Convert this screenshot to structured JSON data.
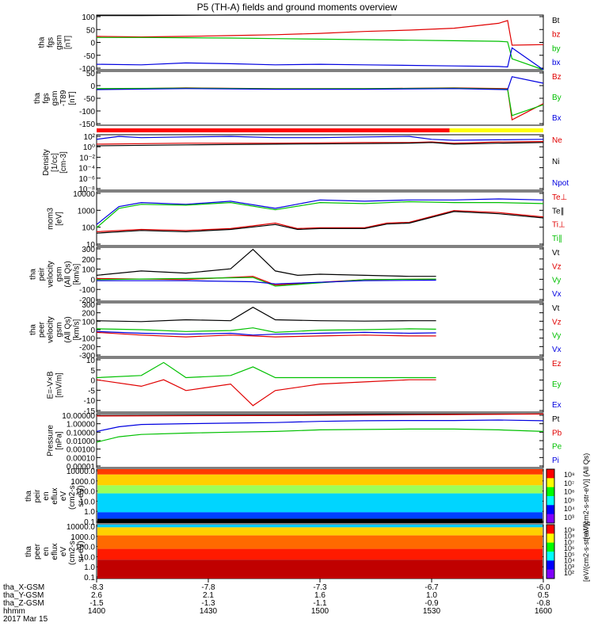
{
  "title": "P5 (TH-A) fields and ground moments overview",
  "chart_data": [
    {
      "type": "line",
      "ylabel": [
        "tha",
        "fgs",
        "gsm",
        "[nT]"
      ],
      "ylim": [
        -100,
        100
      ],
      "yticks": [
        "100",
        "50",
        "0",
        "-50",
        "-100"
      ],
      "legend": [
        {
          "name": "Bt",
          "color": "#000000"
        },
        {
          "name": "bz",
          "color": "#e00000"
        },
        {
          "name": "by",
          "color": "#00c000"
        },
        {
          "name": "bx",
          "color": "#0000e0"
        }
      ],
      "series": [
        {
          "name": "Bt",
          "color": "#000000",
          "x": [
            0,
            0.1,
            0.2,
            0.3,
            0.4,
            0.5,
            0.6,
            0.66
          ],
          "y": [
            98,
            98,
            99,
            100,
            101,
            103,
            104,
            103
          ]
        },
        {
          "name": "bz",
          "color": "#e00000",
          "x": [
            0,
            0.1,
            0.2,
            0.3,
            0.4,
            0.5,
            0.6,
            0.7,
            0.8,
            0.9,
            0.92,
            0.93,
            1
          ],
          "y": [
            22,
            20,
            22,
            25,
            28,
            33,
            40,
            45,
            52,
            70,
            80,
            -10,
            -8
          ]
        },
        {
          "name": "by",
          "color": "#00c000",
          "x": [
            0,
            0.1,
            0.2,
            0.3,
            0.4,
            0.5,
            0.6,
            0.7,
            0.8,
            0.9,
            0.92,
            0.93,
            1
          ],
          "y": [
            18,
            18,
            17,
            16,
            14,
            12,
            10,
            8,
            6,
            4,
            2,
            -60,
            -100
          ]
        },
        {
          "name": "bx",
          "color": "#0000e0",
          "x": [
            0,
            0.1,
            0.2,
            0.3,
            0.4,
            0.5,
            0.6,
            0.7,
            0.8,
            0.9,
            0.92,
            0.93,
            1
          ],
          "y": [
            -80,
            -82,
            -75,
            -78,
            -82,
            -80,
            -82,
            -84,
            -86,
            -88,
            -90,
            -20,
            -100
          ]
        }
      ]
    },
    {
      "type": "line",
      "ylabel": [
        "tha",
        "fgs",
        "gsm",
        "-T89",
        "[nT]"
      ],
      "ylim": [
        -175,
        75
      ],
      "yticks": [
        "50",
        "0",
        "-50",
        "-100",
        "-150"
      ],
      "legend": [
        {
          "name": "Bz",
          "color": "#e00000"
        },
        {
          "name": "By",
          "color": "#00c000"
        },
        {
          "name": "Bx",
          "color": "#0000e0"
        }
      ],
      "series": [
        {
          "name": "Bz",
          "color": "#e00000",
          "x": [
            0,
            0.2,
            0.4,
            0.6,
            0.8,
            0.92,
            0.93,
            1
          ],
          "y": [
            -8,
            -2,
            -5,
            -5,
            -2,
            -5,
            -150,
            -75
          ]
        },
        {
          "name": "By",
          "color": "#00c000",
          "x": [
            0,
            0.2,
            0.4,
            0.6,
            0.8,
            0.92,
            0.93,
            1
          ],
          "y": [
            -5,
            -3,
            -6,
            -5,
            -3,
            -8,
            -130,
            -80
          ]
        },
        {
          "name": "Bx",
          "color": "#0000e0",
          "x": [
            0,
            0.2,
            0.4,
            0.6,
            0.8,
            0.92,
            0.93,
            1
          ],
          "y": [
            -10,
            -5,
            -8,
            -8,
            -5,
            -10,
            50,
            20
          ]
        }
      ]
    },
    {
      "type": "line",
      "ylabel": [
        "Density",
        "[1/cc]",
        "[cm-3]"
      ],
      "ylog": true,
      "ylim": [
        1e-09,
        10
      ],
      "yticks": [
        "10²",
        "10⁰",
        "10⁻²",
        "10⁻⁴",
        "10⁻⁶",
        "10⁻⁸"
      ],
      "legend": [
        {
          "name": "Ne",
          "color": "#e00000"
        },
        {
          "name": "Ni",
          "color": "#000000"
        },
        {
          "name": "Npot",
          "color": "#0000e0"
        }
      ],
      "series": [
        {
          "name": "Npot",
          "color": "#0000e0",
          "x": [
            0,
            0.05,
            0.1,
            0.2,
            0.3,
            0.4,
            0.5,
            0.6,
            0.7,
            0.75,
            0.8,
            0.9,
            1
          ],
          "y": [
            1.5,
            5,
            3,
            4,
            5,
            3,
            3,
            4,
            5,
            1.5,
            1,
            1.2,
            1.5
          ]
        },
        {
          "name": "Ne",
          "color": "#e00000",
          "x": [
            0,
            0.2,
            0.4,
            0.6,
            0.7,
            0.75,
            0.8,
            0.9,
            1
          ],
          "y": [
            0.2,
            0.3,
            0.3,
            0.4,
            0.4,
            0.5,
            0.3,
            0.5,
            0.6
          ]
        },
        {
          "name": "Ni",
          "color": "#000000",
          "x": [
            0,
            0.2,
            0.4,
            0.6,
            0.7,
            0.75,
            0.8,
            0.9,
            1
          ],
          "y": [
            0.1,
            0.15,
            0.2,
            0.25,
            0.3,
            0.4,
            0.2,
            0.3,
            0.4
          ]
        }
      ]
    },
    {
      "type": "line",
      "ylabel": [
        "mom3",
        "[eV]"
      ],
      "ylog": true,
      "ylim": [
        10,
        10000
      ],
      "yticks": [
        "10000",
        "1000",
        "100",
        "10"
      ],
      "legend": [
        {
          "name": "Te⊥",
          "color": "#e00000"
        },
        {
          "name": "Te∥",
          "color": "#000000"
        },
        {
          "name": "Ti⊥",
          "color": "#e00000"
        },
        {
          "name": "Ti∥",
          "color": "#00c000"
        }
      ],
      "series": [
        {
          "name": "Ti⊥",
          "color": "#0000e0",
          "x": [
            0,
            0.05,
            0.1,
            0.2,
            0.3,
            0.4,
            0.5,
            0.6,
            0.7,
            0.8,
            0.9,
            1
          ],
          "y": [
            150,
            1500,
            2500,
            2000,
            3000,
            1200,
            3500,
            3000,
            3500,
            3500,
            4000,
            3500
          ]
        },
        {
          "name": "Ti∥",
          "color": "#00c000",
          "x": [
            0,
            0.05,
            0.1,
            0.2,
            0.3,
            0.4,
            0.5,
            0.6,
            0.7,
            0.8,
            0.9,
            1
          ],
          "y": [
            100,
            1200,
            2000,
            1800,
            2500,
            1000,
            2500,
            2200,
            2800,
            2500,
            2500,
            2200
          ]
        },
        {
          "name": "Te⊥",
          "color": "#e00000",
          "x": [
            0,
            0.1,
            0.2,
            0.3,
            0.4,
            0.45,
            0.5,
            0.6,
            0.65,
            0.7,
            0.8,
            0.9,
            1
          ],
          "y": [
            60,
            80,
            70,
            90,
            180,
            90,
            100,
            100,
            180,
            200,
            900,
            700,
            400
          ]
        },
        {
          "name": "Te∥",
          "color": "#000000",
          "x": [
            0,
            0.1,
            0.2,
            0.3,
            0.4,
            0.45,
            0.5,
            0.6,
            0.65,
            0.7,
            0.8,
            0.9,
            1
          ],
          "y": [
            50,
            70,
            60,
            80,
            150,
            80,
            90,
            90,
            160,
            180,
            800,
            600,
            350
          ]
        }
      ]
    },
    {
      "type": "line",
      "ylabel": [
        "tha",
        "peir",
        "velocity",
        "gsm",
        "(All Qs)",
        "[km/s]"
      ],
      "ylim": [
        -200,
        300
      ],
      "yticks": [
        "300",
        "200",
        "100",
        "0",
        "-100",
        "-200"
      ],
      "legend": [
        {
          "name": "Vt",
          "color": "#000000"
        },
        {
          "name": "Vz",
          "color": "#e00000"
        },
        {
          "name": "Vy",
          "color": "#00c000"
        },
        {
          "name": "Vx",
          "color": "#0000e0"
        }
      ],
      "series": [
        {
          "name": "Vt",
          "color": "#000000",
          "x": [
            0,
            0.1,
            0.2,
            0.3,
            0.35,
            0.4,
            0.45,
            0.5,
            0.6,
            0.7,
            0.76
          ],
          "y": [
            40,
            80,
            60,
            100,
            280,
            80,
            40,
            50,
            40,
            30,
            30
          ]
        },
        {
          "name": "Vz",
          "color": "#e00000",
          "x": [
            0,
            0.2,
            0.35,
            0.4,
            0.6,
            0.76
          ],
          "y": [
            10,
            0,
            30,
            -50,
            0,
            5
          ]
        },
        {
          "name": "Vy",
          "color": "#00c000",
          "x": [
            0,
            0.2,
            0.35,
            0.4,
            0.6,
            0.76
          ],
          "y": [
            0,
            10,
            20,
            -60,
            0,
            5
          ]
        },
        {
          "name": "Vx",
          "color": "#0000e0",
          "x": [
            0,
            0.2,
            0.35,
            0.4,
            0.6,
            0.76
          ],
          "y": [
            -10,
            -10,
            -20,
            -40,
            -10,
            -5
          ]
        }
      ]
    },
    {
      "type": "line",
      "ylabel": [
        "tha",
        "peer",
        "velocity",
        "gsm",
        "(All Qs)",
        "[km/s]"
      ],
      "ylim": [
        -300,
        300
      ],
      "yticks": [
        "300",
        "200",
        "100",
        "0",
        "-100",
        "-200",
        "-300"
      ],
      "legend": [
        {
          "name": "Vt",
          "color": "#000000"
        },
        {
          "name": "Vz",
          "color": "#e00000"
        },
        {
          "name": "Vy",
          "color": "#00c000"
        },
        {
          "name": "Vx",
          "color": "#0000e0"
        }
      ],
      "series": [
        {
          "name": "Vt",
          "color": "#000000",
          "x": [
            0,
            0.1,
            0.2,
            0.3,
            0.35,
            0.4,
            0.5,
            0.6,
            0.7,
            0.76
          ],
          "y": [
            100,
            90,
            110,
            100,
            250,
            110,
            100,
            95,
            100,
            100
          ]
        },
        {
          "name": "Vy",
          "color": "#00c000",
          "x": [
            0,
            0.1,
            0.2,
            0.3,
            0.35,
            0.4,
            0.5,
            0.6,
            0.7,
            0.76
          ],
          "y": [
            10,
            0,
            -20,
            -10,
            20,
            -30,
            -5,
            0,
            10,
            5
          ]
        },
        {
          "name": "Vx",
          "color": "#0000e0",
          "x": [
            0,
            0.1,
            0.2,
            0.3,
            0.35,
            0.4,
            0.5,
            0.6,
            0.7,
            0.76
          ],
          "y": [
            -20,
            -40,
            -50,
            -40,
            -60,
            -50,
            -40,
            -30,
            -40,
            -35
          ]
        },
        {
          "name": "Vz",
          "color": "#e00000",
          "x": [
            0,
            0.1,
            0.2,
            0.3,
            0.35,
            0.4,
            0.5,
            0.6,
            0.7,
            0.76
          ],
          "y": [
            -30,
            -60,
            -80,
            -60,
            -70,
            -80,
            -70,
            -60,
            -70,
            -70
          ]
        }
      ]
    },
    {
      "type": "line",
      "ylabel": [
        "E=-V×B",
        "[mV/m]"
      ],
      "ylim": [
        -15,
        10
      ],
      "yticks": [
        "10",
        "5",
        "0",
        "-5",
        "-10",
        "-15"
      ],
      "legend": [
        {
          "name": "Ez",
          "color": "#e00000"
        },
        {
          "name": "Ey",
          "color": "#00c000"
        },
        {
          "name": "Ex",
          "color": "#0000e0"
        }
      ],
      "series": [
        {
          "name": "Ey",
          "color": "#00c000",
          "x": [
            0,
            0.1,
            0.15,
            0.2,
            0.3,
            0.35,
            0.4,
            0.5,
            0.6,
            0.7,
            0.76
          ],
          "y": [
            1,
            2,
            8,
            1,
            2,
            6,
            1,
            1,
            1,
            1,
            1
          ]
        },
        {
          "name": "Ez",
          "color": "#e00000",
          "x": [
            0,
            0.1,
            0.15,
            0.2,
            0.3,
            0.35,
            0.4,
            0.5,
            0.6,
            0.7,
            0.76
          ],
          "y": [
            0,
            -3,
            0,
            -5,
            -2,
            -12,
            -5,
            -2,
            -1,
            0,
            0
          ]
        }
      ]
    },
    {
      "type": "line",
      "ylabel": [
        "Pressure",
        "[nPa]"
      ],
      "ylog": true,
      "ylim": [
        1e-06,
        10
      ],
      "yticks": [
        "10.00000",
        "1.00000",
        "0.10000",
        "0.01000",
        "0.00100",
        "0.00010",
        "0.00001"
      ],
      "legend": [
        {
          "name": "Pt",
          "color": "#000000"
        },
        {
          "name": "Pb",
          "color": "#e00000"
        },
        {
          "name": "Pe",
          "color": "#00c000"
        },
        {
          "name": "Pi",
          "color": "#0000e0"
        }
      ],
      "series": [
        {
          "name": "Pt",
          "color": "#000000",
          "x": [
            0,
            0.5,
            1
          ],
          "y": [
            6,
            7,
            10
          ]
        },
        {
          "name": "Pb",
          "color": "#e00000",
          "x": [
            0,
            0.5,
            1
          ],
          "y": [
            5,
            6,
            9
          ]
        },
        {
          "name": "Pi",
          "color": "#0000e0",
          "x": [
            0,
            0.05,
            0.1,
            0.2,
            0.3,
            0.4,
            0.5,
            0.6,
            0.7,
            0.8,
            0.9,
            1
          ],
          "y": [
            0.05,
            0.2,
            0.4,
            0.5,
            0.6,
            0.7,
            1.0,
            1.2,
            1.3,
            1.3,
            1.5,
            1.2
          ]
        },
        {
          "name": "Pe",
          "color": "#00c000",
          "x": [
            0,
            0.05,
            0.1,
            0.2,
            0.3,
            0.4,
            0.5,
            0.6,
            0.7,
            0.8,
            0.9,
            1
          ],
          "y": [
            0.002,
            0.01,
            0.02,
            0.03,
            0.04,
            0.05,
            0.08,
            0.09,
            0.1,
            0.1,
            0.08,
            0.05
          ]
        }
      ]
    },
    {
      "type": "heatmap",
      "ylabel": [
        "tha",
        "peir",
        "en",
        "eflux",
        "eV",
        "(cm2-s-",
        "sr-eV)"
      ],
      "ylog": true,
      "yticks": [
        "10000.0",
        "1000.0",
        "100.0",
        "10.0",
        "1.0",
        "0.1"
      ],
      "colorbar_ticks": [
        "10⁸",
        "10⁷",
        "10⁶",
        "10⁵",
        "10⁴",
        "10³"
      ],
      "colorbar_label": "[eV/(cm2-s-str-eV)] (All Qs)"
    },
    {
      "type": "heatmap",
      "ylabel": [
        "tha",
        "peer",
        "en",
        "eflux",
        "eV",
        "(cm2-s-",
        "sr-eV)"
      ],
      "ylog": true,
      "yticks": [
        "10000.0",
        "1000.0",
        "100.0",
        "10.0",
        "1.0",
        "0.1"
      ],
      "colorbar_ticks": [
        "10⁹",
        "10⁸",
        "10⁷",
        "10⁶",
        "10⁵",
        "10⁴",
        "10³",
        "10²"
      ],
      "colorbar_label": "[eV/(cm2-s-str-eV)]"
    }
  ],
  "xaxis": {
    "rows": [
      {
        "label": "tha_X-GSM",
        "values": [
          "-8.3",
          "-7.8",
          "-7.3",
          "-6.7",
          "-6.0"
        ]
      },
      {
        "label": "tha_Y-GSM",
        "values": [
          "2.6",
          "2.1",
          "1.6",
          "1.0",
          "0.5"
        ]
      },
      {
        "label": "tha_Z-GSM",
        "values": [
          "-1.5",
          "-1.3",
          "-1.1",
          "-0.9",
          "-0.8"
        ]
      },
      {
        "label": "hhmm",
        "values": [
          "1400",
          "1430",
          "1500",
          "1530",
          "1600"
        ]
      }
    ],
    "date": "2017 Mar 15"
  }
}
